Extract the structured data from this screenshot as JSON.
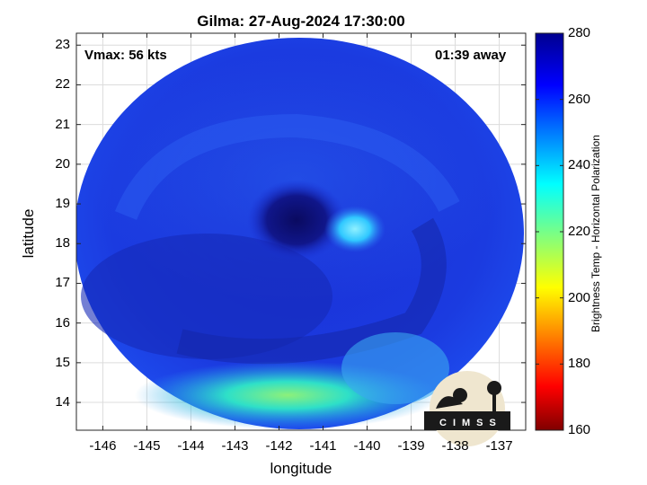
{
  "title": "Gilma: 27-Aug-2024 17:30:00",
  "vmax": "Vmax: 56 kts",
  "away": "01:39 away",
  "xlabel": "longitude",
  "ylabel": "latitude",
  "colorbar_label": "Brightness Temp - Horizontal Polarization",
  "logo_text": "CIMSS",
  "chart_data": {
    "type": "heatmap",
    "title": "Gilma: 27-Aug-2024 17:30:00",
    "xlabel": "longitude",
    "ylabel": "latitude",
    "xlim": [
      -146.6,
      -136.4
    ],
    "ylim": [
      13.3,
      23.3
    ],
    "x_ticks": [
      "-146",
      "-145",
      "-144",
      "-143",
      "-142",
      "-141",
      "-140",
      "-139",
      "-138",
      "-137"
    ],
    "x_tick_values": [
      -146,
      -145,
      -144,
      -143,
      -142,
      -141,
      -140,
      -139,
      -138,
      -137
    ],
    "y_ticks": [
      "14",
      "15",
      "16",
      "17",
      "18",
      "19",
      "20",
      "21",
      "22",
      "23"
    ],
    "y_tick_values": [
      14,
      15,
      16,
      17,
      18,
      19,
      20,
      21,
      22,
      23
    ],
    "colorbar": {
      "min": 160,
      "max": 280,
      "ticks": [
        "160",
        "180",
        "200",
        "220",
        "240",
        "260",
        "280"
      ],
      "tick_values": [
        160,
        180,
        200,
        220,
        240,
        260,
        280
      ],
      "colormap": "jet"
    },
    "grid": true,
    "swath_center": [
      -141.5,
      18.3
    ],
    "eye_center": [
      -141.4,
      18.6
    ],
    "features": [
      {
        "name": "eye",
        "lon": -141.4,
        "lat": 18.6,
        "tb": 268
      },
      {
        "name": "warm core",
        "lon": -140.6,
        "lat": 18.5,
        "tb": 242
      },
      {
        "name": "cold southern band",
        "lon": -141.6,
        "lat": 14.3,
        "tb": 232
      }
    ]
  }
}
